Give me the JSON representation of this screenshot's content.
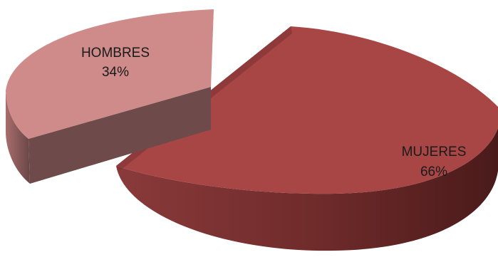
{
  "chart_data": {
    "type": "pie",
    "style": "3d-exploded",
    "slices": [
      {
        "label": "MUJERES",
        "value": 66,
        "value_label": "66%",
        "color": "#A84646"
      },
      {
        "label": "HOMBRES",
        "value": 34,
        "value_label": "34%",
        "color": "#CF8A8A"
      }
    ],
    "legend": "none"
  }
}
